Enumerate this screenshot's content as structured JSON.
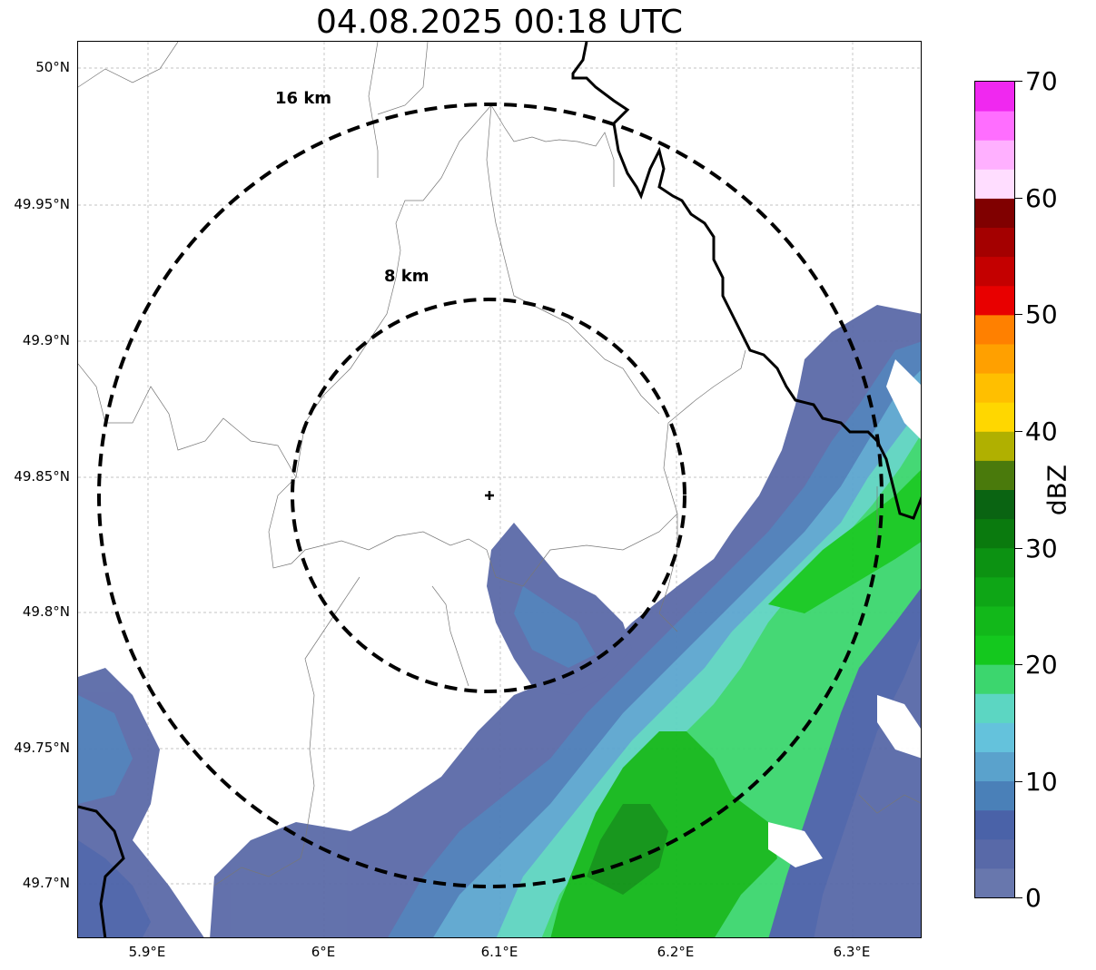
{
  "map": {
    "title": "04.08.2025 00:18 UTC",
    "lat_labels": [
      "50°N",
      "49.95°N",
      "49.9°N",
      "49.85°N",
      "49.8°N",
      "49.75°N",
      "49.7°N"
    ],
    "lon_labels": [
      "5.9°E",
      "6°E",
      "6.1°E",
      "6.2°E",
      "6.3°E"
    ],
    "ring_labels": [
      "16 km",
      "8 km"
    ],
    "extent": {
      "lon_min": 5.861,
      "lon_max": 6.339,
      "lat_min": 49.681,
      "lat_max": 50.01
    },
    "radar_site": {
      "lon": 6.095,
      "lat": 49.843
    },
    "colors": {
      "ring": "#000000",
      "border": "#000000",
      "grid": "#b0b0b0",
      "echo_low": "#6a79a8",
      "echo_mid": "#4a7fb9",
      "echo_high": "#12c212"
    }
  },
  "colorbar": {
    "label": "dBZ",
    "ticks": [
      "70",
      "60",
      "50",
      "40",
      "30",
      "20",
      "10",
      "0"
    ],
    "min": 0,
    "max": 70,
    "colors": [
      "#6877ad",
      "#5869a8",
      "#4a62a8",
      "#4a80b8",
      "#5aa2cc",
      "#64c2dc",
      "#5cd6c2",
      "#3cd66e",
      "#14c81e",
      "#12b81a",
      "#0ea616",
      "#0c9212",
      "#0a7a0e",
      "#0a6412",
      "#4a7a0c",
      "#b0b000",
      "#ffd700",
      "#ffbf00",
      "#ffa000",
      "#ff8000",
      "#e80000",
      "#c40000",
      "#a40000",
      "#800000",
      "#ffddff",
      "#ffb0ff",
      "#ff6eff",
      "#f028f0"
    ]
  }
}
